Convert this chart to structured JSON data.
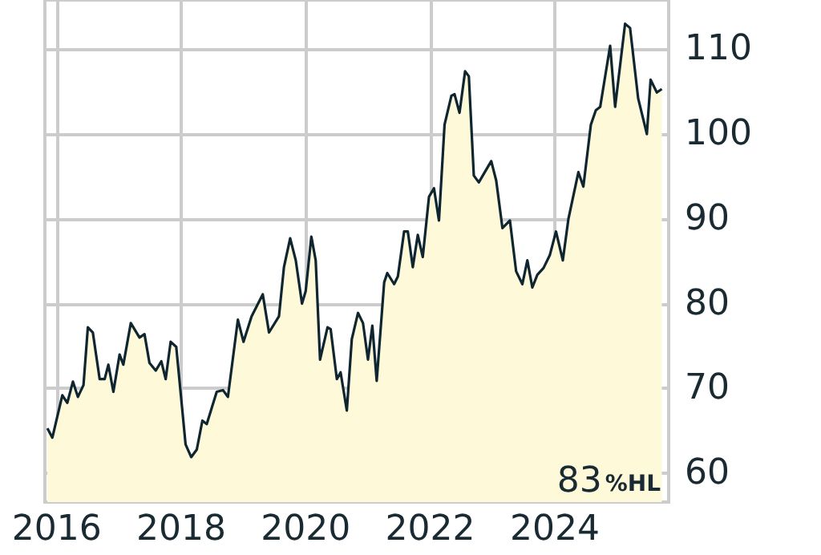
{
  "chart_data": {
    "type": "area",
    "x": [
      2015.85,
      2015.93,
      2016.09,
      2016.17,
      2016.26,
      2016.34,
      2016.43,
      2016.5,
      2016.58,
      2016.69,
      2016.77,
      2016.83,
      2016.91,
      2017.01,
      2017.07,
      2017.19,
      2017.33,
      2017.41,
      2017.49,
      2017.59,
      2017.68,
      2017.75,
      2017.83,
      2017.92,
      2018.07,
      2018.16,
      2018.25,
      2018.34,
      2018.41,
      2018.57,
      2018.67,
      2018.75,
      2018.91,
      2019.0,
      2019.13,
      2019.31,
      2019.41,
      2019.57,
      2019.65,
      2019.75,
      2019.84,
      2019.94,
      2020.0,
      2020.09,
      2020.16,
      2020.23,
      2020.35,
      2020.4,
      2020.5,
      2020.56,
      2020.66,
      2020.74,
      2020.84,
      2020.92,
      2021.0,
      2021.07,
      2021.14,
      2021.26,
      2021.31,
      2021.42,
      2021.48,
      2021.58,
      2021.64,
      2021.72,
      2021.8,
      2021.88,
      2021.98,
      2022.06,
      2022.14,
      2022.23,
      2022.34,
      2022.39,
      2022.47,
      2022.56,
      2022.62,
      2022.7,
      2022.78,
      2022.98,
      2023.06,
      2023.16,
      2023.28,
      2023.38,
      2023.48,
      2023.56,
      2023.64,
      2023.72,
      2023.82,
      2023.92,
      2024.02,
      2024.13,
      2024.22,
      2024.38,
      2024.46,
      2024.58,
      2024.66,
      2024.73,
      2024.89,
      2024.97,
      2025.13,
      2025.21,
      2025.34,
      2025.48,
      2025.54,
      2025.64,
      2025.72
    ],
    "series": [
      {
        "color": "#0f2530",
        "values": [
          65.3,
          64.2,
          69.2,
          68.3,
          70.8,
          69.0,
          70.4,
          77.2,
          76.6,
          71.1,
          71.1,
          72.8,
          69.6,
          74.0,
          72.8,
          77.7,
          76.0,
          76.4,
          73.0,
          72.1,
          73.2,
          71.1,
          75.5,
          74.9,
          63.4,
          61.9,
          62.8,
          66.2,
          65.8,
          69.6,
          69.8,
          69.0,
          78.1,
          75.5,
          78.5,
          81.1,
          76.6,
          78.5,
          84.3,
          87.7,
          85.1,
          80.0,
          81.5,
          87.9,
          85.1,
          73.4,
          77.2,
          77.0,
          71.1,
          71.9,
          67.4,
          75.8,
          78.9,
          77.7,
          73.4,
          77.4,
          70.9,
          82.5,
          83.6,
          82.3,
          83.2,
          88.5,
          88.5,
          84.3,
          88.1,
          85.5,
          92.6,
          93.6,
          89.8,
          101.1,
          104.5,
          104.7,
          102.5,
          107.4,
          106.8,
          95.1,
          94.3,
          96.8,
          94.5,
          88.9,
          89.8,
          83.8,
          82.3,
          85.1,
          81.9,
          83.4,
          84.2,
          85.7,
          88.5,
          85.1,
          90.0,
          95.5,
          93.8,
          101.1,
          102.8,
          103.2,
          110.4,
          103.2,
          113.0,
          112.5,
          104.2,
          100.0,
          106.4,
          104.9,
          105.3
        ]
      }
    ],
    "xlim": [
      2015.81,
      2025.83
    ],
    "xticks": [
      2016,
      2018,
      2020,
      2022,
      2024
    ],
    "ylim": [
      56.6,
      115.8
    ],
    "yticks": [
      60,
      70,
      80,
      90,
      100,
      110
    ],
    "grid": true,
    "marker": "none",
    "line_style": "solid",
    "annotations": [
      "83%HL"
    ]
  }
}
